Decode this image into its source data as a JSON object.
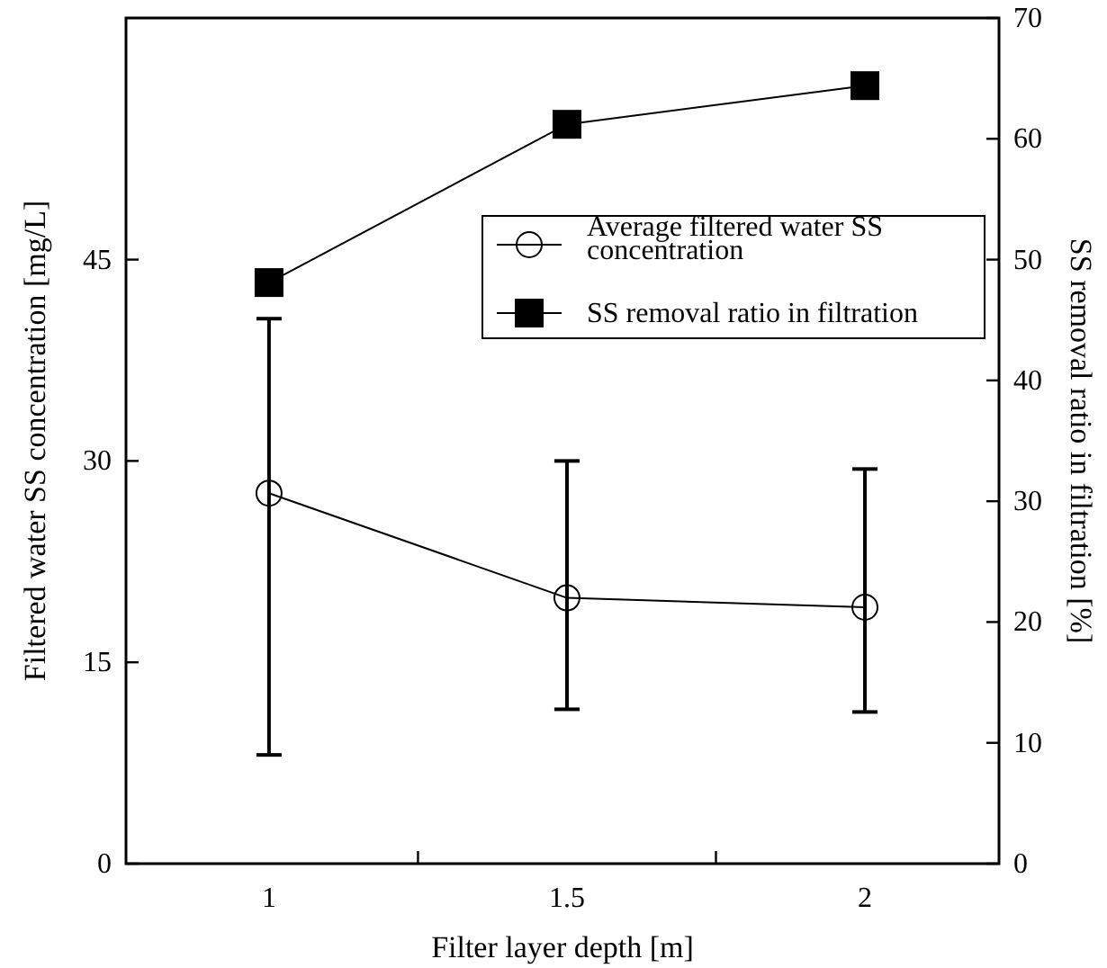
{
  "chart_data": {
    "type": "line",
    "xlabel": "Filter layer depth [m]",
    "ylabel": "Filtered water SS concentration [mg/L]",
    "y2label": "SS removal ratio in filtration [%]",
    "categories": [
      "1",
      "1.5",
      "2"
    ],
    "ylim": [
      0,
      63
    ],
    "yticks": [
      0,
      15,
      30,
      45
    ],
    "y2lim": [
      0,
      70
    ],
    "y2ticks": [
      0,
      10,
      20,
      30,
      40,
      50,
      60,
      70
    ],
    "legend": "right",
    "grid": false,
    "series": [
      {
        "name": "Average filtered water SS concentration",
        "color": "#000000",
        "marker": "circle",
        "values": [
          27.6,
          19.8,
          19.1
        ],
        "errors": [
          [
            8.1,
            40.6
          ],
          [
            11.5,
            30.0
          ],
          [
            11.3,
            29.4
          ]
        ]
      },
      {
        "name": "SS removal ratio in filtration",
        "color": "#000000",
        "marker": "square",
        "axis": "y2",
        "values": [
          48.1,
          61.2,
          64.4
        ]
      }
    ]
  }
}
